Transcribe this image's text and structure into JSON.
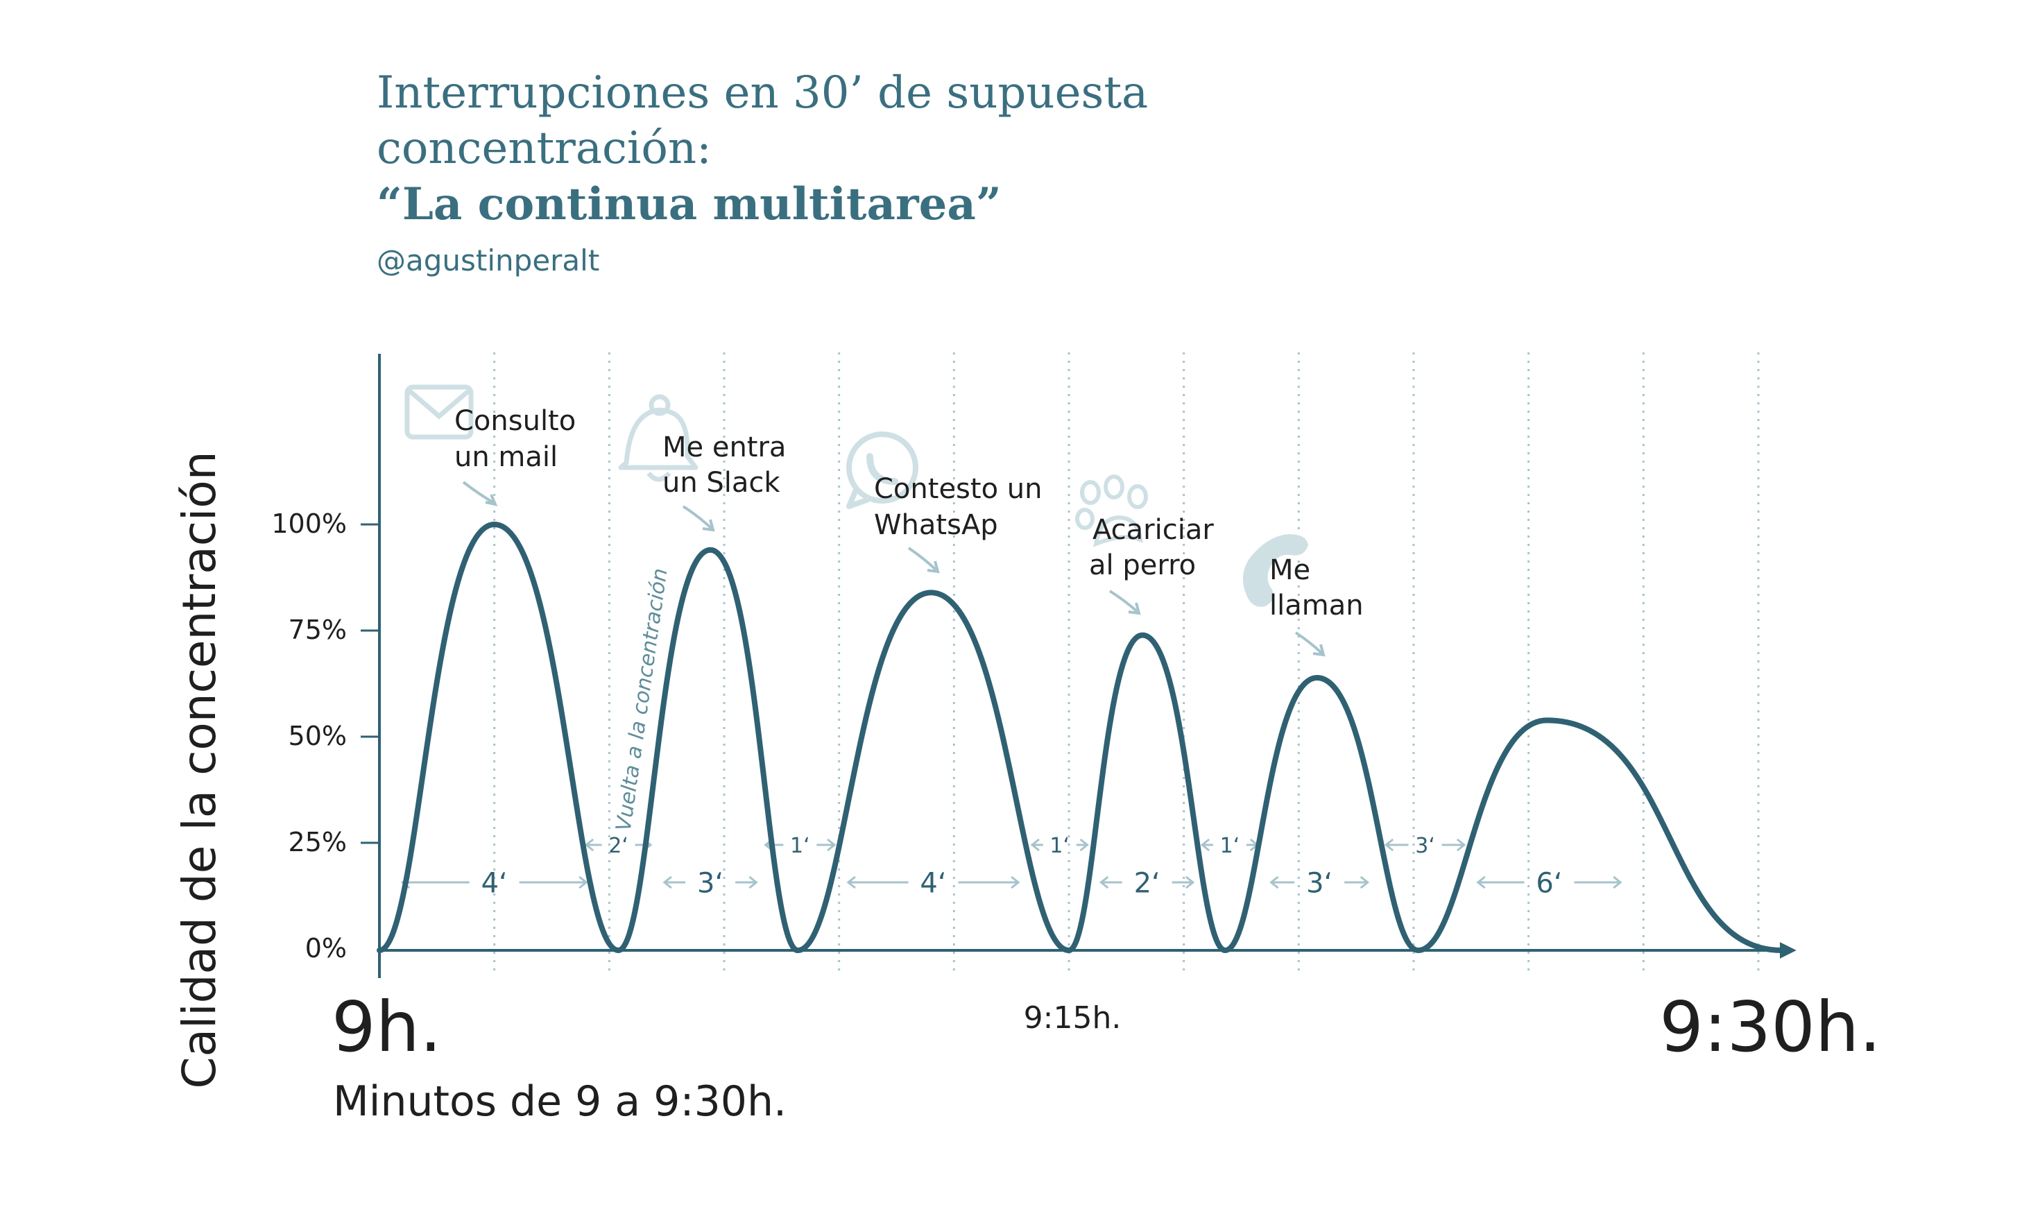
{
  "colors": {
    "title": "#3a6f80",
    "line": "#2f6173",
    "light": "#a7c3cc",
    "icon": "#cfe0e5",
    "text": "#1f1f1f",
    "background": "#ffffff"
  },
  "header": {
    "title_line1": "Interrupciones en 30’ de supuesta",
    "title_line2": "concentración:",
    "title_bold": "“La continua multitarea”",
    "author": "@agustinperalt"
  },
  "chart_data": {
    "type": "line",
    "x_unit": "minutos",
    "xlim": [
      0,
      30
    ],
    "ylim": [
      0,
      100
    ],
    "ylabel": "Calidad de la concentración",
    "xlabel": "Minutos de 9 a 9:30h.",
    "y_ticks": [
      "100%",
      "75%",
      "50%",
      "25%",
      "0%"
    ],
    "x_tick_labels": [
      {
        "x": 0,
        "label": "9h."
      },
      {
        "x": 15,
        "label": "9:15h."
      },
      {
        "x": 30,
        "label": "9:30h."
      }
    ],
    "gridlines_minutes": [
      2.5,
      5,
      7.5,
      10,
      12.5,
      15,
      17.5,
      20,
      22.5,
      25,
      27.5,
      30
    ],
    "series": [
      {
        "points": [
          {
            "x": 0,
            "y": 0
          },
          {
            "x": 2.5,
            "y": 100
          },
          {
            "x": 5.2,
            "y": 0
          },
          {
            "x": 7.2,
            "y": 94
          },
          {
            "x": 9.1,
            "y": 0
          },
          {
            "x": 12.0,
            "y": 84
          },
          {
            "x": 15.0,
            "y": 0
          },
          {
            "x": 16.6,
            "y": 74
          },
          {
            "x": 18.4,
            "y": 0
          },
          {
            "x": 20.4,
            "y": 64
          },
          {
            "x": 22.6,
            "y": 0
          },
          {
            "x": 25.4,
            "y": 54
          },
          {
            "x": 30.5,
            "y": 0
          }
        ]
      }
    ],
    "annotations": [
      {
        "label_line1": "Consulto",
        "label_line2": "un mail",
        "icon": "mail-icon",
        "x": 2.5,
        "y": 100
      },
      {
        "label_line1": "Me entra",
        "label_line2": "un Slack",
        "icon": "bell-icon",
        "x": 7.2,
        "y": 94
      },
      {
        "label_line1": "Contesto un",
        "label_line2": "WhatsAp",
        "icon": "chat-icon",
        "x": 12.0,
        "y": 84
      },
      {
        "label_line1": "Acariciar",
        "label_line2": "al perro",
        "icon": "paw-icon",
        "x": 16.6,
        "y": 74
      },
      {
        "label_line1": "Me",
        "label_line2": "llaman",
        "icon": "phone-icon",
        "x": 20.4,
        "y": 64
      }
    ],
    "vertical_note": "Vuelta a la concentración",
    "durations": [
      {
        "label": "4‘",
        "from": 0.5,
        "to": 4.5,
        "row": "low"
      },
      {
        "label": "2‘",
        "from": 4.5,
        "to": 5.9,
        "row": "high"
      },
      {
        "label": "3‘",
        "from": 6.2,
        "to": 8.2,
        "row": "low"
      },
      {
        "label": "1‘",
        "from": 8.4,
        "to": 9.9,
        "row": "high"
      },
      {
        "label": "4‘",
        "from": 10.2,
        "to": 13.9,
        "row": "low"
      },
      {
        "label": "1‘",
        "from": 14.2,
        "to": 15.4,
        "row": "high"
      },
      {
        "label": "2‘",
        "from": 15.7,
        "to": 17.7,
        "row": "low"
      },
      {
        "label": "1‘",
        "from": 17.9,
        "to": 19.1,
        "row": "high"
      },
      {
        "label": "3‘",
        "from": 19.4,
        "to": 21.5,
        "row": "low"
      },
      {
        "label": "3‘",
        "from": 21.9,
        "to": 23.6,
        "row": "high"
      },
      {
        "label": "6‘",
        "from": 23.9,
        "to": 27.0,
        "row": "low"
      }
    ]
  }
}
